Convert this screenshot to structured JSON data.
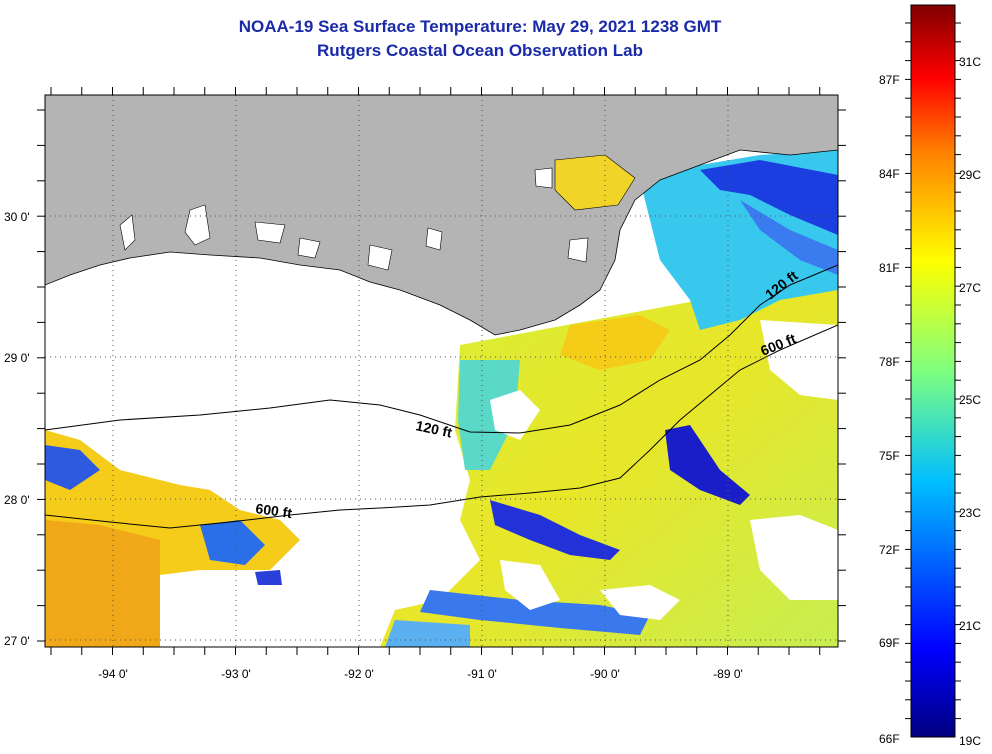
{
  "title": {
    "line1": "NOAA-19 Sea Surface Temperature:  May 29, 2021 1238 GMT",
    "line2": "Rutgers Coastal Ocean Observation Lab"
  },
  "map": {
    "lon_ticks": [
      "-94 0'",
      "-93 0'",
      "-92 0'",
      "-91 0'",
      "-90 0'",
      "-89 0'"
    ],
    "lat_ticks": [
      "30 0'",
      "29 0'",
      "28 0'",
      "27 0'"
    ],
    "contour_labels": [
      "120 ft",
      "120 ft",
      "600 ft",
      "600 ft"
    ],
    "colors": {
      "land": "#b4b4b4",
      "cloud": "#ffffff",
      "graticule": "#555555"
    }
  },
  "colorbar": {
    "fahrenheit": [
      "87F",
      "84F",
      "81F",
      "78F",
      "75F",
      "72F",
      "69F",
      "66F"
    ],
    "celsius": [
      "31C",
      "29C",
      "27C",
      "25C",
      "23C",
      "21C",
      "19C"
    ],
    "range_c": [
      19,
      32
    ],
    "stops": [
      "#00007f",
      "#0000ff",
      "#00bfff",
      "#7fff7f",
      "#ffff00",
      "#ff8000",
      "#ff0000",
      "#7f0000"
    ]
  }
}
